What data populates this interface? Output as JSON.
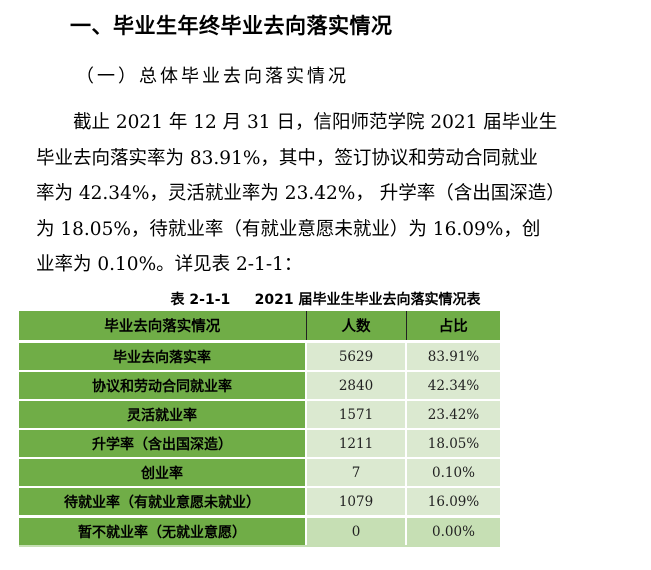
{
  "heading1": "一、毕业生年终毕业去向落实情况",
  "heading2": "（一）总体毕业去向落实情况",
  "paragraph_lines": [
    "　　截止 2021 年 12 月 31 日，信阳师范学院 2021 届毕业生",
    "毕业去向落实率为 83.91%，其中，签订协议和劳动合同就业",
    "率为 42.34%，灵活就业率为 23.42%， 升学率（含出国深造）",
    "为 18.05%，待就业率（有就业意愿未就业）为 16.09%，创",
    "业率为 0.10%。详见表 2-1-1："
  ],
  "table": {
    "caption_id": "表 2-1-1",
    "caption_title": "2021 届毕业生毕业去向落实情况表",
    "headers": [
      "毕业去向落实情况",
      "人数",
      "占比"
    ],
    "rows": [
      {
        "label": "毕业去向落实率",
        "count": "5629",
        "pct": "83.91%"
      },
      {
        "label": "协议和劳动合同就业率",
        "count": "2840",
        "pct": "42.34%"
      },
      {
        "label": "灵活就业率",
        "count": "1571",
        "pct": "23.42%"
      },
      {
        "label": "升学率（含出国深造）",
        "count": "1211",
        "pct": "18.05%"
      },
      {
        "label": "创业率",
        "count": "7",
        "pct": "0.10%"
      },
      {
        "label": "待就业率（有就业意愿未就业）",
        "count": "1079",
        "pct": "16.09%"
      },
      {
        "label": "暂不就业率（无就业意愿）",
        "count": "0",
        "pct": "0.00%"
      }
    ]
  },
  "colors": {
    "header_green": "#70ad47",
    "cell_light": "#dbe9d0",
    "cell_last": "#c6dfb4"
  }
}
